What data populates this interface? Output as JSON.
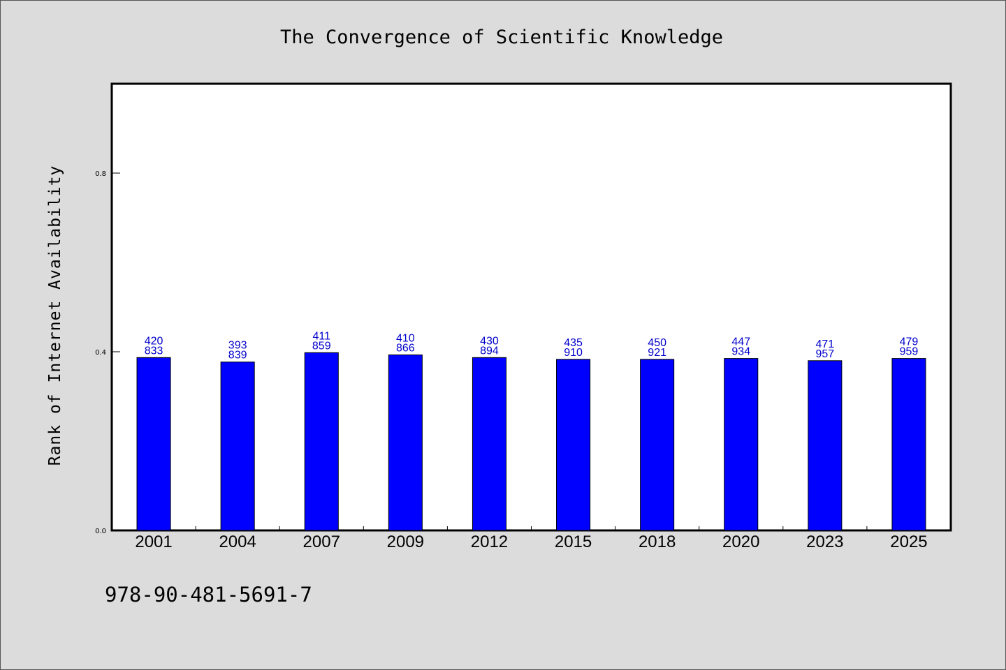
{
  "chart_data": {
    "type": "bar",
    "title": "The Convergence of Scientific Knowledge",
    "xlabel": "",
    "ylabel": "Rank of Internet Availability",
    "categories": [
      "2001",
      "2004",
      "2007",
      "2009",
      "2012",
      "2015",
      "2018",
      "2020",
      "2023",
      "2025"
    ],
    "values": [
      0.387,
      0.377,
      0.398,
      0.393,
      0.387,
      0.383,
      0.383,
      0.385,
      0.38,
      0.385
    ],
    "data_labels": [
      [
        "420",
        "833"
      ],
      [
        "393",
        "839"
      ],
      [
        "411",
        "859"
      ],
      [
        "410",
        "866"
      ],
      [
        "430",
        "894"
      ],
      [
        "435",
        "910"
      ],
      [
        "450",
        "921"
      ],
      [
        "447",
        "934"
      ],
      [
        "471",
        "957"
      ],
      [
        "479",
        "959"
      ]
    ],
    "ylim": [
      0,
      1.0
    ],
    "yticks": [
      "0.0",
      "0.4",
      "0.8"
    ],
    "grid": false,
    "bar_color": "#0000ff",
    "label_color": "#0000cc"
  },
  "annotation": "978-90-481-5691-7"
}
